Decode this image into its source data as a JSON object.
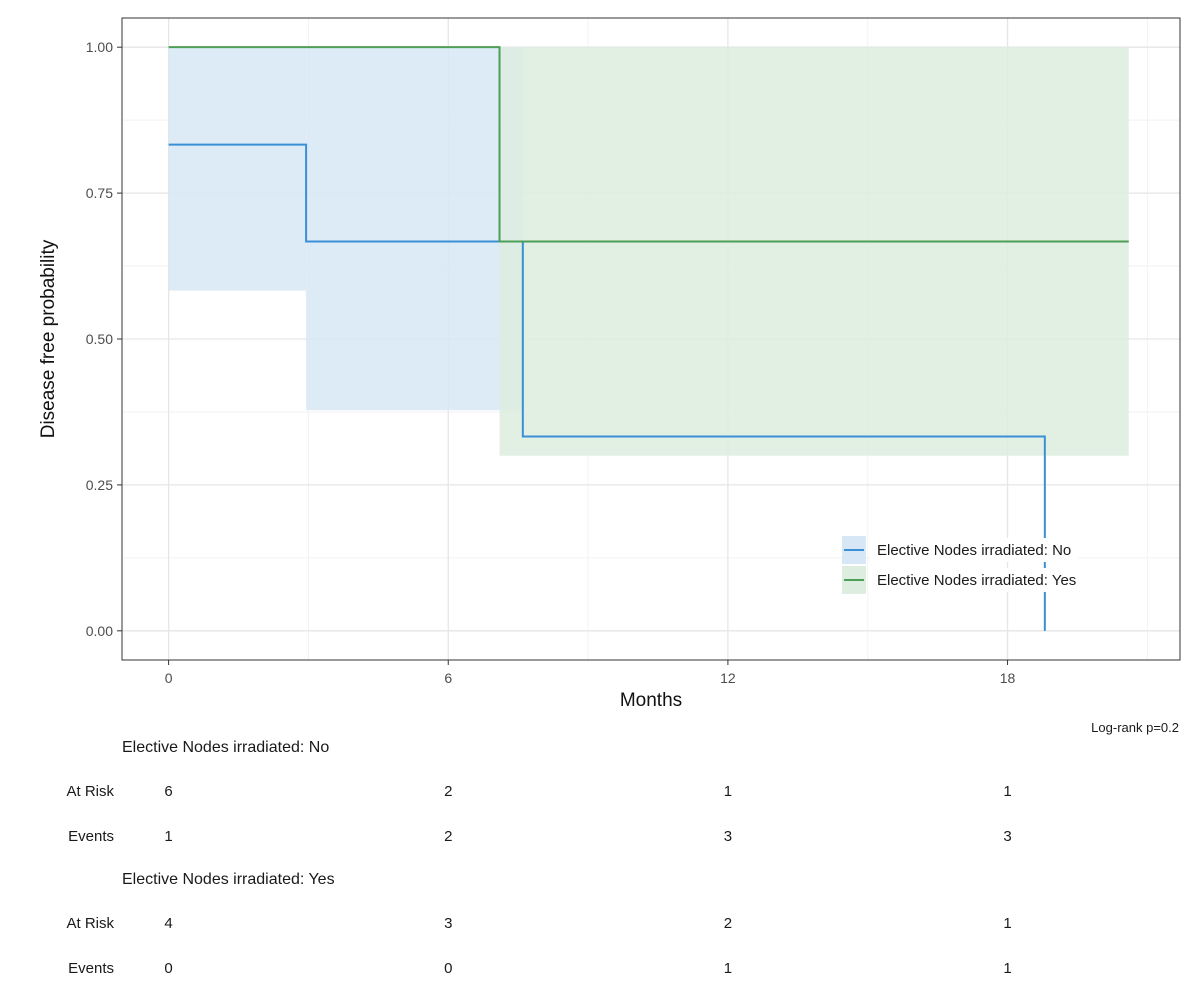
{
  "chart_data": {
    "type": "line",
    "subtype": "kaplan-meier",
    "title": "",
    "xlabel": "Months",
    "ylabel": "Disease free probability",
    "xlim": [
      -1.0,
      21.7
    ],
    "ylim": [
      -0.05,
      1.05
    ],
    "x_ticks": [
      0,
      6,
      12,
      18
    ],
    "x_tick_labels": [
      "0",
      "6",
      "12",
      "18"
    ],
    "y_ticks": [
      0,
      0.25,
      0.5,
      0.75,
      1.0
    ],
    "y_tick_labels": [
      "0.00",
      "0.25",
      "0.50",
      "0.75",
      "1.00"
    ],
    "grid": true,
    "legend_position": "bottom-right",
    "annotation": "Log-rank p=0.2",
    "series": [
      {
        "name": "Elective Nodes irradiated: No",
        "color": "#3a8fd6",
        "ci_color": "#d7e7f6",
        "steps": [
          {
            "x": 0,
            "y": 0.833
          },
          {
            "x": 2.95,
            "y": 0.667
          },
          {
            "x": 7.6,
            "y": 0.333
          },
          {
            "x": 18.8,
            "y": 0.0
          }
        ],
        "end_x": 18.8,
        "ci": [
          {
            "x0": 0,
            "x1": 2.95,
            "lower": 0.583,
            "upper": 1.0
          },
          {
            "x0": 2.95,
            "x1": 7.6,
            "lower": 0.378,
            "upper": 1.0
          }
        ]
      },
      {
        "name": "Elective Nodes irradiated: Yes",
        "color": "#4d9e57",
        "ci_color": "#ddeddf",
        "steps": [
          {
            "x": 0,
            "y": 1.0
          },
          {
            "x": 7.1,
            "y": 0.667
          }
        ],
        "end_x": 20.6,
        "ci": [
          {
            "x0": 7.1,
            "x1": 20.6,
            "lower": 0.3,
            "upper": 1.0
          }
        ]
      }
    ]
  },
  "risk_table": {
    "times": [
      0,
      6,
      12,
      18
    ],
    "groups": [
      {
        "title": "Elective Nodes irradiated: No",
        "rows": [
          {
            "label": "At Risk",
            "values": [
              "6",
              "2",
              "1",
              "1"
            ]
          },
          {
            "label": "Events",
            "values": [
              "1",
              "2",
              "3",
              "3"
            ]
          }
        ]
      },
      {
        "title": "Elective Nodes irradiated: Yes",
        "rows": [
          {
            "label": "At Risk",
            "values": [
              "4",
              "3",
              "2",
              "1"
            ]
          },
          {
            "label": "Events",
            "values": [
              "0",
              "0",
              "1",
              "1"
            ]
          }
        ]
      }
    ]
  }
}
